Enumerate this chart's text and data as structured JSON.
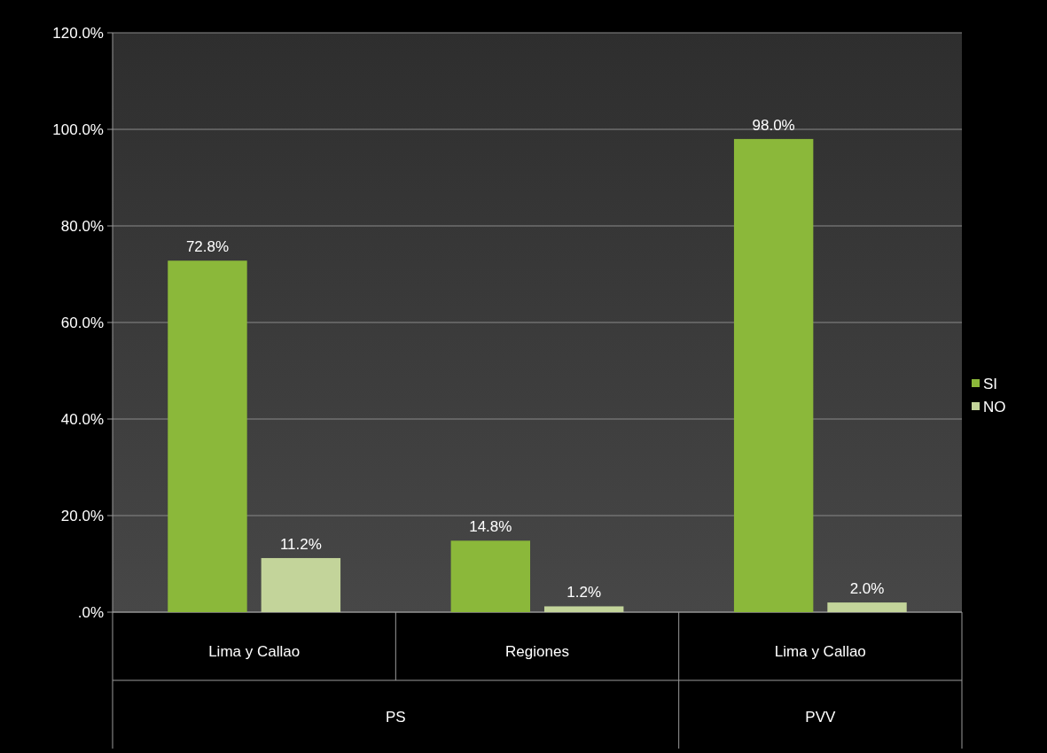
{
  "chart_data": {
    "type": "bar",
    "categories": [
      "Lima y Callao",
      "Regiones",
      "Lima y Callao"
    ],
    "series": [
      {
        "name": "SI",
        "color": "#8bb83a",
        "values": [
          72.8,
          14.8,
          98.0
        ],
        "value_labels": [
          "72.8%",
          "14.8%",
          "98.0%"
        ]
      },
      {
        "name": "NO",
        "color": "#c3d49a",
        "values": [
          11.2,
          1.2,
          2.0
        ],
        "value_labels": [
          "11.2%",
          "1.2%",
          "2.0%"
        ]
      }
    ],
    "annotations": [
      "PS",
      "PVV"
    ],
    "ylim": [
      0,
      120
    ],
    "yticks": [
      {
        "value": 0,
        "label": ".0%"
      },
      {
        "value": 20,
        "label": "20.0%"
      },
      {
        "value": 40,
        "label": "40.0%"
      },
      {
        "value": 60,
        "label": "60.0%"
      },
      {
        "value": 80,
        "label": "80.0%"
      },
      {
        "value": 100,
        "label": "100.0%"
      },
      {
        "value": 120,
        "label": "120.0%"
      }
    ],
    "grid": "y",
    "legend": "right"
  }
}
